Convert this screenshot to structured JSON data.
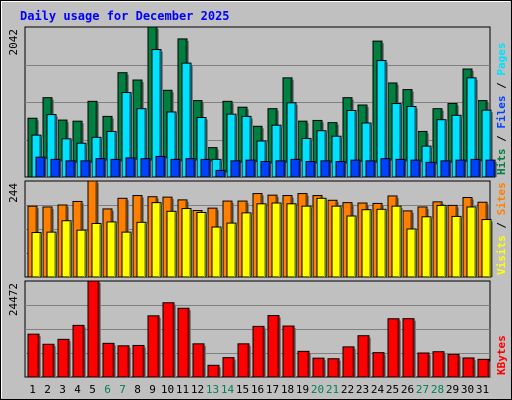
{
  "chart_data": {
    "type": "bar",
    "title": "Daily usage for December 2025",
    "categories": [
      "1",
      "2",
      "3",
      "4",
      "5",
      "6",
      "7",
      "8",
      "9",
      "10",
      "11",
      "12",
      "13",
      "14",
      "15",
      "16",
      "17",
      "18",
      "19",
      "20",
      "21",
      "22",
      "23",
      "24",
      "25",
      "26",
      "27",
      "28",
      "29",
      "30",
      "31"
    ],
    "weekend_days": [
      "6",
      "7",
      "13",
      "14",
      "20",
      "21",
      "27",
      "28"
    ],
    "panels": [
      {
        "name": "top",
        "max_label": "2042",
        "ylim": [
          0,
          2042
        ],
        "legend": [
          {
            "text": "Hits",
            "color": "#008040"
          },
          {
            "text": " / ",
            "color": "#000000"
          },
          {
            "text": "Files",
            "color": "#0040ff"
          },
          {
            "text": " / ",
            "color": "#000000"
          },
          {
            "text": "Pages",
            "color": "#00e0ff"
          }
        ],
        "series": [
          {
            "name": "Hits",
            "color": "#008040",
            "values": [
              800,
              1080,
              775,
              760,
              1030,
              825,
              1420,
              1320,
              2042,
              1180,
              1880,
              1040,
              400,
              1030,
              950,
              690,
              930,
              1350,
              760,
              770,
              740,
              1080,
              980,
              1850,
              1280,
              1190,
              620,
              930,
              1000,
              1470,
              1040
            ]
          },
          {
            "name": "Files",
            "color": "#00e0ff",
            "values": [
              570,
              850,
              520,
              460,
              540,
              620,
              1150,
              930,
              1735,
              885,
              1550,
              810,
              240,
              855,
              825,
              490,
              705,
              1010,
              525,
              630,
              555,
              905,
              735,
              1585,
              1000,
              960,
              420,
              780,
              840,
              1350,
              910
            ]
          },
          {
            "name": "Pages",
            "color": "#0040ff",
            "values": [
              270,
              240,
              220,
              220,
              250,
              240,
              260,
              250,
              280,
              240,
              250,
              240,
              90,
              220,
              230,
              210,
              220,
              240,
              210,
              220,
              210,
              230,
              220,
              250,
              240,
              230,
              200,
              220,
              230,
              240,
              230
            ]
          }
        ]
      },
      {
        "name": "middle",
        "max_label": "244",
        "ylim": [
          0,
          244
        ],
        "legend": [
          {
            "text": "Visits",
            "color": "#ffff00"
          },
          {
            "text": " / ",
            "color": "#000000"
          },
          {
            "text": "Sites",
            "color": "#ff8000"
          }
        ],
        "series": [
          {
            "name": "Visits",
            "color": "#ff8000",
            "values": [
              180,
              178,
              183,
              192,
              244,
              173,
              200,
              207,
              204,
              203,
              196,
              169,
              175,
              193,
              193,
              212,
              208,
              207,
              212,
              207,
              195,
              189,
              188,
              187,
              206,
              168,
              178,
              191,
              182,
              202,
              190
            ]
          },
          {
            "name": "Sites",
            "color": "#ffff00",
            "values": [
              113,
              114,
              143,
              119,
              136,
              140,
              114,
              139,
              189,
              167,
              174,
              164,
              127,
              137,
              163,
              186,
              188,
              186,
              180,
              200,
              180,
              155,
              171,
              172,
              180,
              122,
              153,
              182,
              154,
              178,
              146
            ]
          }
        ]
      },
      {
        "name": "bottom",
        "max_label": "24472",
        "ylim": [
          0,
          24472
        ],
        "legend": [
          {
            "text": "KBytes",
            "color": "#ff0000"
          }
        ],
        "series": [
          {
            "name": "KBytes",
            "color": "#ff0000",
            "values": [
              10920,
              8340,
              9600,
              13160,
              24472,
              8580,
              7950,
              8040,
              15600,
              18930,
              17520,
              8460,
              2980,
              4930,
              8460,
              12900,
              15660,
              12990,
              6540,
              4800,
              4660,
              7680,
              10530,
              6210,
              14850,
              14870,
              6120,
              6450,
              5760,
              4860,
              4500
            ]
          }
        ]
      }
    ],
    "grid": true,
    "legend_placement": "right-vertical"
  }
}
